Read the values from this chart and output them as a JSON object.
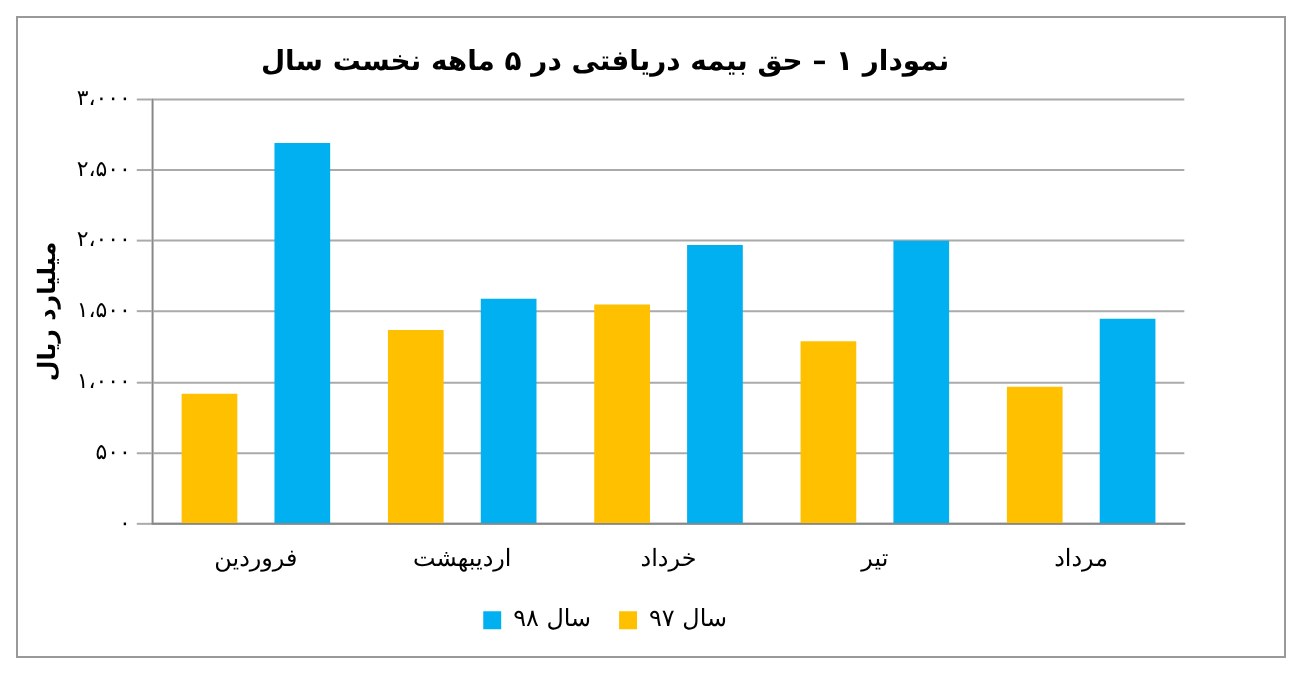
{
  "chart_data": {
    "type": "bar",
    "title": "نمودار ۱ – حق بیمه دریافتی در ۵ ماهه نخست سال",
    "ylabel": "میلیارد ریال",
    "categories": [
      "فروردین",
      "اردیبهشت",
      "خرداد",
      "تیر",
      "مرداد"
    ],
    "series": [
      {
        "name": "سال ۹۷",
        "color": "#ffc000",
        "values": [
          920,
          1370,
          1550,
          1290,
          970
        ]
      },
      {
        "name": "سال ۹۸",
        "color": "#00b0f0",
        "values": [
          2690,
          1590,
          1970,
          2000,
          1450
        ]
      }
    ],
    "ylim": [
      0,
      3000
    ],
    "yticks": [
      {
        "value": 0,
        "label": "۰"
      },
      {
        "value": 500,
        "label": "۵۰۰"
      },
      {
        "value": 1000,
        "label": "۱،۰۰۰"
      },
      {
        "value": 1500,
        "label": "۱،۵۰۰"
      },
      {
        "value": 2000,
        "label": "۲،۰۰۰"
      },
      {
        "value": 2500,
        "label": "۲،۵۰۰"
      },
      {
        "value": 3000,
        "label": "۳،۰۰۰"
      }
    ],
    "grid": "y",
    "legend": "bottom"
  }
}
